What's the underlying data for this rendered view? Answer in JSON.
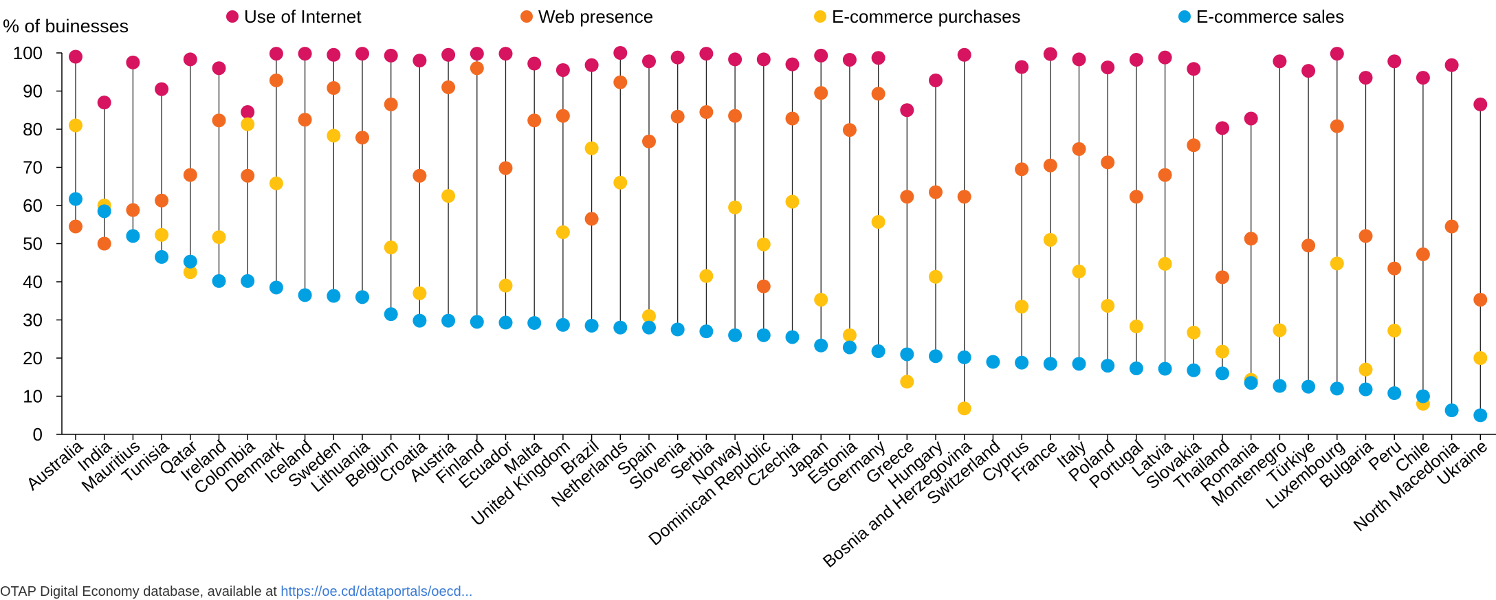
{
  "chart_data": {
    "type": "scatter",
    "ylabel": "% of buinesses",
    "ylim": [
      0,
      100
    ],
    "yticks": [
      0,
      10,
      20,
      30,
      40,
      50,
      60,
      70,
      80,
      90,
      100
    ],
    "grid": false,
    "legend_position": "top",
    "categories": [
      "Australia",
      "India",
      "Mauritius",
      "Tunisia",
      "Qatar",
      "Ireland",
      "Colombia",
      "Denmark",
      "Iceland",
      "Sweden",
      "Lithuania",
      "Belgium",
      "Croatia",
      "Austria",
      "Finland",
      "Ecuador",
      "Malta",
      "United Kingdom",
      "Brazil",
      "Netherlands",
      "Spain",
      "Slovenia",
      "Serbia",
      "Norway",
      "Dominican Republic",
      "Czechia",
      "Japan",
      "Estonia",
      "Germany",
      "Greece",
      "Hungary",
      "Bosnia and Herzegovina",
      "Switzerland",
      "Cyprus",
      "France",
      "Italy",
      "Poland",
      "Portugal",
      "Latvia",
      "Slovakia",
      "Thailand",
      "Romania",
      "Montenegro",
      "Türkiye",
      "Luxembourg",
      "Bulgaria",
      "Peru",
      "Chile",
      "North Macedonia",
      "Ukraine"
    ],
    "series": [
      {
        "name": "Use of Internet",
        "color": "#d6145f",
        "values": [
          99,
          87,
          97.5,
          90.5,
          98.3,
          96,
          84.5,
          99.8,
          99.8,
          99.5,
          99.8,
          99.3,
          98,
          99.5,
          99.8,
          99.8,
          97.2,
          95.5,
          96.8,
          100,
          97.8,
          98.8,
          99.8,
          98.3,
          98.3,
          97,
          99.3,
          98.2,
          98.7,
          85,
          92.8,
          99.5,
          null,
          96.3,
          99.7,
          98.3,
          96.2,
          98.2,
          98.8,
          95.8,
          80.3,
          82.8,
          97.8,
          95.3,
          99.8,
          93.5,
          97.8,
          93.5,
          96.8,
          86.5
        ]
      },
      {
        "name": "Web presence",
        "color": "#f26a21",
        "values": [
          54.5,
          50,
          58.8,
          61.3,
          68,
          82.3,
          67.8,
          92.8,
          82.5,
          90.8,
          77.8,
          86.5,
          67.8,
          91,
          96,
          69.8,
          82.3,
          83.5,
          56.5,
          92.3,
          76.8,
          83.3,
          84.5,
          83.5,
          38.8,
          82.8,
          89.5,
          79.8,
          89.3,
          62.3,
          63.5,
          62.3,
          null,
          69.5,
          70.5,
          74.8,
          71.3,
          62.3,
          68,
          75.8,
          41.2,
          51.3,
          null,
          49.5,
          80.8,
          52,
          43.5,
          47.2,
          54.5,
          35.3
        ]
      },
      {
        "name": "E-commerce purchases",
        "color": "#ffc20e",
        "values": [
          81,
          60,
          null,
          52.3,
          42.5,
          51.7,
          81.3,
          65.8,
          null,
          78.3,
          36,
          49,
          37,
          62.5,
          null,
          39,
          null,
          53,
          75,
          66,
          31,
          null,
          41.5,
          59.5,
          49.8,
          61,
          35.3,
          26,
          55.7,
          13.8,
          41.3,
          6.8,
          null,
          33.5,
          51,
          42.7,
          33.7,
          28.3,
          44.7,
          26.7,
          21.7,
          14.3,
          27.3,
          null,
          44.8,
          17,
          27.2,
          8,
          null,
          20
        ]
      },
      {
        "name": "E-commerce sales",
        "color": "#00a0e3",
        "values": [
          61.7,
          58.5,
          52,
          46.5,
          45.3,
          40.2,
          40.2,
          38.5,
          36.5,
          36.3,
          36,
          31.5,
          29.8,
          29.8,
          29.5,
          29.3,
          29.2,
          28.7,
          28.5,
          28,
          28,
          27.5,
          27,
          26,
          26,
          25.5,
          23.3,
          22.8,
          21.8,
          21,
          20.5,
          20.2,
          19,
          18.8,
          18.5,
          18.5,
          18,
          17.3,
          17.2,
          16.8,
          16,
          13.5,
          12.7,
          12.5,
          12,
          11.8,
          10.8,
          10,
          6.3,
          5
        ]
      }
    ]
  },
  "footer": {
    "prefix": "OTAP Digital Economy database, available at ",
    "link": "https://oe.cd/dataportals/oecd..."
  }
}
